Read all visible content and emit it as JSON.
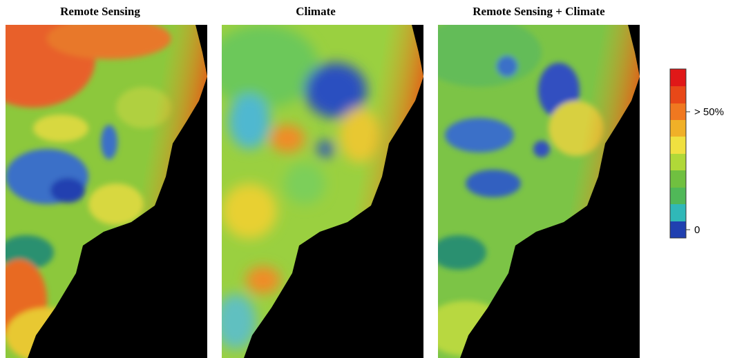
{
  "panels": [
    {
      "title": "Remote Sensing"
    },
    {
      "title": "Climate"
    },
    {
      "title": "Remote Sensing + Climate"
    }
  ],
  "legend": {
    "high_label": "> 50%",
    "low_label": "0"
  }
}
